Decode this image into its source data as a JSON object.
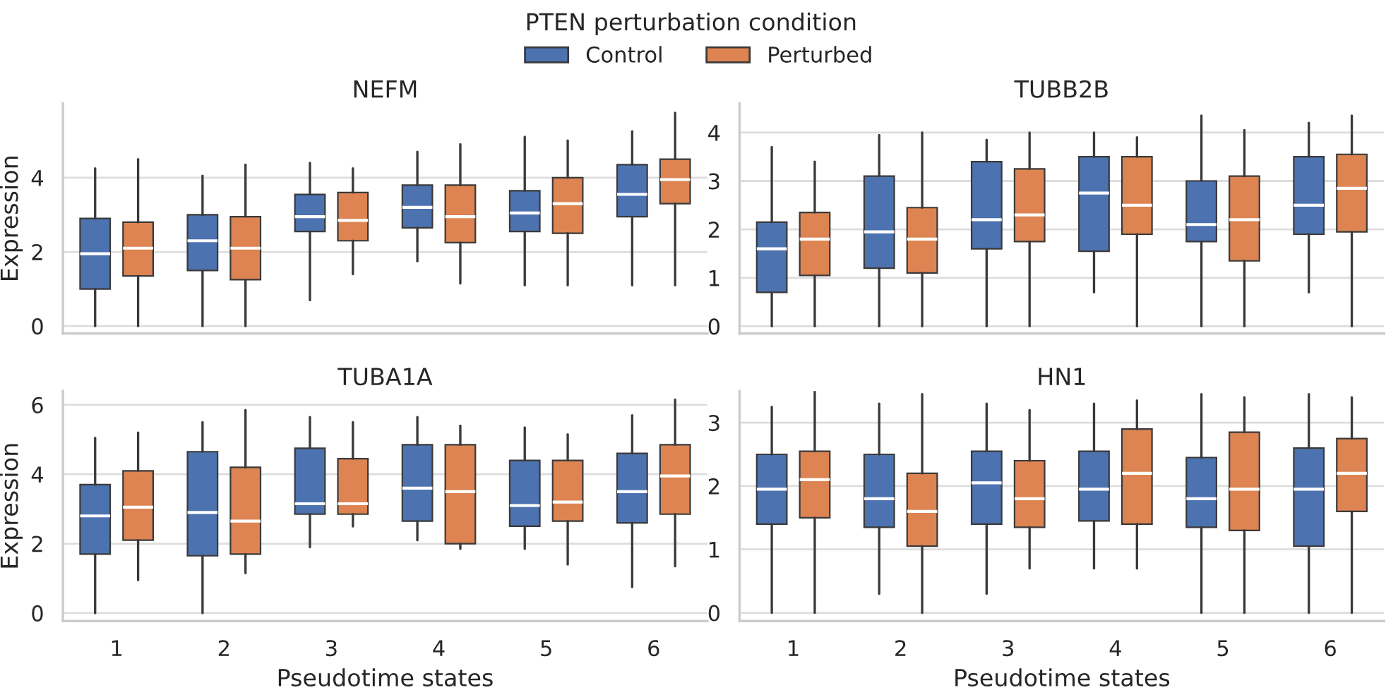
{
  "chart_data": [
    {
      "type": "box",
      "title": "NEFM",
      "ylabel": "Expression",
      "categories": [
        "1",
        "2",
        "3",
        "4",
        "5",
        "6"
      ],
      "ylim": [
        -0.2,
        6.0
      ],
      "yticks": [
        0,
        2,
        4
      ],
      "grid": "y",
      "tick_labels": "y",
      "legend": "top",
      "legend_title": "PTEN perturbation condition",
      "series": [
        {
          "name": "Control",
          "color": "#4c72b0",
          "boxes": [
            {
              "low": 0,
              "q1": 1.0,
              "median": 1.95,
              "q3": 2.9,
              "high": 4.25
            },
            {
              "low": 0,
              "q1": 1.5,
              "median": 2.3,
              "q3": 3.0,
              "high": 4.05
            },
            {
              "low": 0.7,
              "q1": 2.55,
              "median": 2.95,
              "q3": 3.55,
              "high": 4.4
            },
            {
              "low": 1.75,
              "q1": 2.65,
              "median": 3.2,
              "q3": 3.8,
              "high": 4.7
            },
            {
              "low": 1.1,
              "q1": 2.55,
              "median": 3.05,
              "q3": 3.65,
              "high": 5.1
            },
            {
              "low": 1.1,
              "q1": 2.95,
              "median": 3.55,
              "q3": 4.35,
              "high": 5.25
            }
          ]
        },
        {
          "name": "Perturbed",
          "color": "#dd8452",
          "boxes": [
            {
              "low": 0,
              "q1": 1.35,
              "median": 2.1,
              "q3": 2.8,
              "high": 4.5
            },
            {
              "low": 0,
              "q1": 1.25,
              "median": 2.1,
              "q3": 2.95,
              "high": 4.35
            },
            {
              "low": 1.4,
              "q1": 2.3,
              "median": 2.85,
              "q3": 3.6,
              "high": 4.25
            },
            {
              "low": 1.15,
              "q1": 2.25,
              "median": 2.95,
              "q3": 3.8,
              "high": 4.9
            },
            {
              "low": 1.1,
              "q1": 2.5,
              "median": 3.3,
              "q3": 4.0,
              "high": 5.0
            },
            {
              "low": 1.1,
              "q1": 3.3,
              "median": 3.95,
              "q3": 4.5,
              "high": 5.75
            }
          ]
        }
      ]
    },
    {
      "type": "box",
      "title": "TUBB2B",
      "categories": [
        "1",
        "2",
        "3",
        "4",
        "5",
        "6"
      ],
      "ylim": [
        -0.15,
        4.6
      ],
      "yticks": [
        0,
        1,
        2,
        3,
        4
      ],
      "grid": "y",
      "tick_labels": "y",
      "series": [
        {
          "color": "#4c72b0",
          "boxes": [
            {
              "low": 0,
              "q1": 0.7,
              "median": 1.6,
              "q3": 2.15,
              "high": 3.7
            },
            {
              "low": 0,
              "q1": 1.2,
              "median": 1.95,
              "q3": 3.1,
              "high": 3.95
            },
            {
              "low": 0,
              "q1": 1.6,
              "median": 2.2,
              "q3": 3.4,
              "high": 3.85
            },
            {
              "low": 0.7,
              "q1": 1.55,
              "median": 2.75,
              "q3": 3.5,
              "high": 4.0
            },
            {
              "low": 0,
              "q1": 1.75,
              "median": 2.1,
              "q3": 3.0,
              "high": 4.35
            },
            {
              "low": 0.7,
              "q1": 1.9,
              "median": 2.5,
              "q3": 3.5,
              "high": 4.2
            }
          ]
        },
        {
          "color": "#dd8452",
          "boxes": [
            {
              "low": 0,
              "q1": 1.05,
              "median": 1.8,
              "q3": 2.35,
              "high": 3.4
            },
            {
              "low": 0,
              "q1": 1.1,
              "median": 1.8,
              "q3": 2.45,
              "high": 4.0
            },
            {
              "low": 0,
              "q1": 1.75,
              "median": 2.3,
              "q3": 3.25,
              "high": 4.0
            },
            {
              "low": 0,
              "q1": 1.9,
              "median": 2.5,
              "q3": 3.5,
              "high": 3.9
            },
            {
              "low": 0,
              "q1": 1.35,
              "median": 2.2,
              "q3": 3.1,
              "high": 4.05
            },
            {
              "low": 0,
              "q1": 1.95,
              "median": 2.85,
              "q3": 3.55,
              "high": 4.35
            }
          ]
        }
      ]
    },
    {
      "type": "box",
      "title": "TUBA1A",
      "xlabel": "Pseudotime states",
      "ylabel": "Expression",
      "categories": [
        "1",
        "2",
        "3",
        "4",
        "5",
        "6"
      ],
      "ylim": [
        -0.23,
        6.4
      ],
      "yticks": [
        0,
        2,
        4,
        6
      ],
      "grid": "y",
      "series": [
        {
          "color": "#4c72b0",
          "boxes": [
            {
              "low": 0,
              "q1": 1.7,
              "median": 2.8,
              "q3": 3.7,
              "high": 5.05
            },
            {
              "low": 0,
              "q1": 1.65,
              "median": 2.9,
              "q3": 4.65,
              "high": 5.5
            },
            {
              "low": 1.9,
              "q1": 2.85,
              "median": 3.15,
              "q3": 4.75,
              "high": 5.65
            },
            {
              "low": 2.1,
              "q1": 2.65,
              "median": 3.6,
              "q3": 4.85,
              "high": 5.65
            },
            {
              "low": 1.85,
              "q1": 2.5,
              "median": 3.1,
              "q3": 4.4,
              "high": 5.35
            },
            {
              "low": 0.75,
              "q1": 2.6,
              "median": 3.5,
              "q3": 4.6,
              "high": 5.7
            }
          ]
        },
        {
          "color": "#dd8452",
          "boxes": [
            {
              "low": 0.95,
              "q1": 2.1,
              "median": 3.05,
              "q3": 4.1,
              "high": 5.2
            },
            {
              "low": 1.15,
              "q1": 1.7,
              "median": 2.65,
              "q3": 4.2,
              "high": 5.85
            },
            {
              "low": 2.5,
              "q1": 2.85,
              "median": 3.15,
              "q3": 4.45,
              "high": 5.5
            },
            {
              "low": 1.85,
              "q1": 2.0,
              "median": 3.5,
              "q3": 4.85,
              "high": 5.4
            },
            {
              "low": 1.4,
              "q1": 2.65,
              "median": 3.2,
              "q3": 4.4,
              "high": 5.15
            },
            {
              "low": 1.35,
              "q1": 2.85,
              "median": 3.95,
              "q3": 4.85,
              "high": 6.15
            }
          ]
        }
      ]
    },
    {
      "type": "box",
      "title": "HN1",
      "xlabel": "Pseudotime states",
      "categories": [
        "1",
        "2",
        "3",
        "4",
        "5",
        "6"
      ],
      "ylim": [
        -0.13,
        3.5
      ],
      "yticks": [
        0,
        1,
        2,
        3
      ],
      "grid": "y",
      "series": [
        {
          "color": "#4c72b0",
          "boxes": [
            {
              "low": 0,
              "q1": 1.4,
              "median": 1.95,
              "q3": 2.5,
              "high": 3.25
            },
            {
              "low": 0.3,
              "q1": 1.35,
              "median": 1.8,
              "q3": 2.5,
              "high": 3.3
            },
            {
              "low": 0.3,
              "q1": 1.4,
              "median": 2.05,
              "q3": 2.55,
              "high": 3.3
            },
            {
              "low": 0.7,
              "q1": 1.45,
              "median": 1.95,
              "q3": 2.55,
              "high": 3.3
            },
            {
              "low": 0,
              "q1": 1.35,
              "median": 1.8,
              "q3": 2.45,
              "high": 3.45
            },
            {
              "low": 0,
              "q1": 1.05,
              "median": 1.95,
              "q3": 2.6,
              "high": 3.45
            }
          ]
        },
        {
          "color": "#dd8452",
          "boxes": [
            {
              "low": 0,
              "q1": 1.5,
              "median": 2.1,
              "q3": 2.55,
              "high": 3.5
            },
            {
              "low": 0,
              "q1": 1.05,
              "median": 1.6,
              "q3": 2.2,
              "high": 3.45
            },
            {
              "low": 0.7,
              "q1": 1.35,
              "median": 1.8,
              "q3": 2.4,
              "high": 3.2
            },
            {
              "low": 0.7,
              "q1": 1.4,
              "median": 2.2,
              "q3": 2.9,
              "high": 3.35
            },
            {
              "low": 0,
              "q1": 1.3,
              "median": 1.95,
              "q3": 2.85,
              "high": 3.4
            },
            {
              "low": 0,
              "q1": 1.6,
              "median": 2.2,
              "q3": 2.75,
              "high": 3.4
            }
          ]
        }
      ]
    }
  ]
}
